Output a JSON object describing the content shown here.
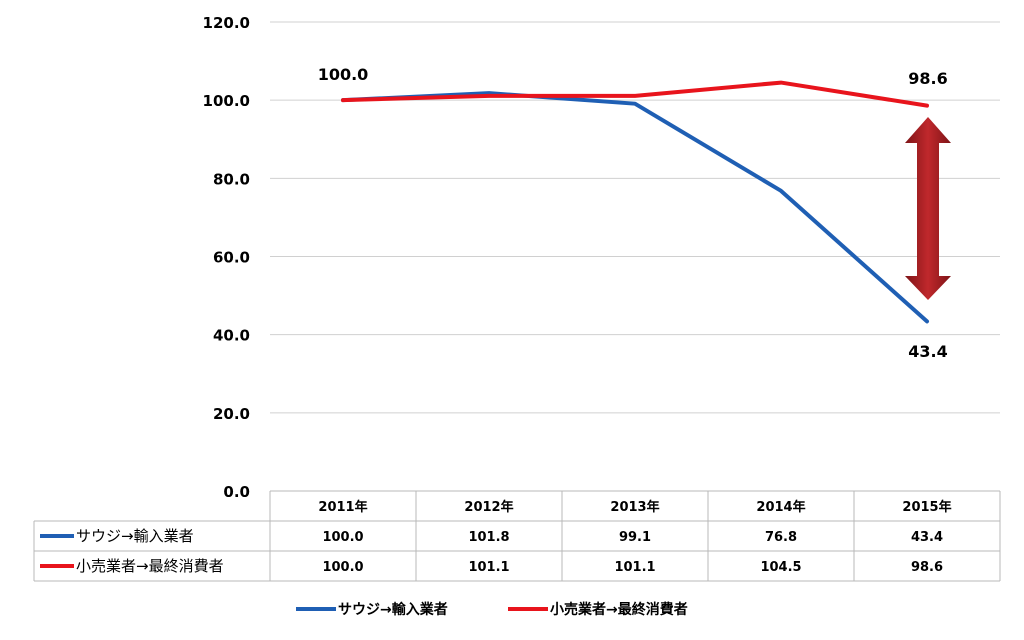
{
  "chart_data": {
    "type": "line",
    "categories": [
      "2011年",
      "2012年",
      "2013年",
      "2014年",
      "2015年"
    ],
    "ylim": [
      0,
      120
    ],
    "yticks": [
      "0.0",
      "20.0",
      "40.0",
      "60.0",
      "80.0",
      "100.0",
      "120.0"
    ],
    "grid": true,
    "series": [
      {
        "name": "サウジ→輸入業者",
        "table_label": "サウジ→輸入業者",
        "color": "#1f5fb4",
        "values": [
          100.0,
          101.8,
          99.1,
          76.8,
          43.4
        ],
        "table_values": [
          "100.0",
          "101.8",
          "99.1",
          "76.8",
          "43.4"
        ]
      },
      {
        "name": "小売業者→最終消費者",
        "table_label": "小売業者→最終消費者",
        "color": "#e8141c",
        "values": [
          100.0,
          101.1,
          101.1,
          104.5,
          98.6
        ],
        "table_values": [
          "100.0",
          "101.1",
          "101.1",
          "104.5",
          "98.6"
        ]
      }
    ],
    "annotations": {
      "start_label": "100.0",
      "end_label_red": "98.6",
      "end_label_blue": "43.4",
      "arrow": "double-headed vertical arrow between series at 2015年",
      "arrow_color": "#b01e22"
    },
    "legend": "bottom"
  }
}
